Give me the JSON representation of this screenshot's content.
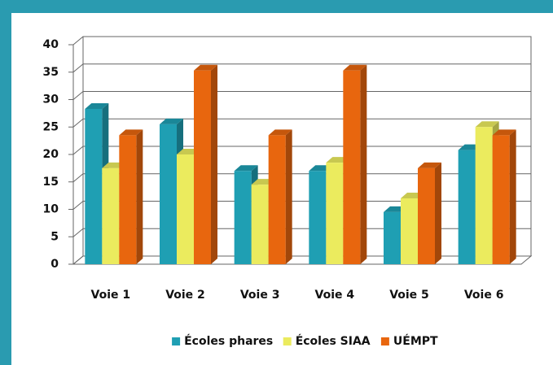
{
  "chart_data": {
    "type": "bar3d",
    "categories": [
      "Voie 1",
      "Voie 2",
      "Voie 3",
      "Voie 4",
      "Voie 5",
      "Voie 6"
    ],
    "series": [
      {
        "name": "Écoles phares",
        "color": "#1f9fb3",
        "values": [
          28.3,
          25.5,
          17,
          17,
          9.5,
          20.8
        ]
      },
      {
        "name": "Écoles SIAA",
        "color": "#ebeb5e",
        "values": [
          17.5,
          20,
          14.5,
          18.5,
          12,
          25
        ]
      },
      {
        "name": "UÉMPT",
        "color": "#e8660e",
        "values": [
          23.5,
          35.3,
          23.5,
          35.3,
          17.5,
          23.5
        ]
      }
    ],
    "ylim": [
      0,
      40
    ],
    "yticks": [
      0,
      5,
      10,
      15,
      20,
      25,
      30,
      35,
      40
    ],
    "grid": true,
    "legend": "bottom"
  }
}
